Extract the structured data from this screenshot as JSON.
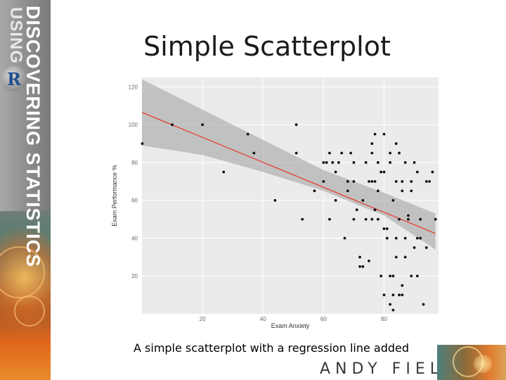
{
  "slide": {
    "title": "Simple Scatterplot",
    "caption": "A simple scatterplot with a regression line added",
    "author": "ANDY FIELD",
    "sidebar": {
      "line1": "DISCOVERING STATISTICS",
      "line2": "USING",
      "logo_letter": "R"
    }
  },
  "chart_data": {
    "type": "scatter",
    "xlabel": "Exam Anxiety",
    "ylabel": "Exam Performance %",
    "xlim": [
      0,
      98
    ],
    "ylim": [
      0,
      125
    ],
    "xticks": [
      20,
      40,
      60,
      80
    ],
    "yticks": [
      20,
      40,
      60,
      80,
      100,
      120
    ],
    "grid": true,
    "background": "#ebebeb",
    "points": [
      [
        0.1,
        90
      ],
      [
        10,
        100
      ],
      [
        20,
        100
      ],
      [
        27,
        75
      ],
      [
        35,
        95
      ],
      [
        37,
        85
      ],
      [
        44,
        60
      ],
      [
        51,
        100
      ],
      [
        51,
        85
      ],
      [
        53,
        50
      ],
      [
        57,
        65
      ],
      [
        60,
        80
      ],
      [
        60,
        70
      ],
      [
        61,
        80
      ],
      [
        62,
        85
      ],
      [
        62,
        50
      ],
      [
        63,
        80
      ],
      [
        64,
        60
      ],
      [
        64,
        75
      ],
      [
        65,
        80
      ],
      [
        66,
        85
      ],
      [
        67,
        40
      ],
      [
        68,
        70
      ],
      [
        68,
        65
      ],
      [
        69,
        85
      ],
      [
        70,
        80
      ],
      [
        70,
        70
      ],
      [
        70,
        50
      ],
      [
        71,
        55
      ],
      [
        72,
        25
      ],
      [
        72,
        30
      ],
      [
        73,
        25
      ],
      [
        73,
        60
      ],
      [
        74,
        80
      ],
      [
        74,
        50
      ],
      [
        75,
        28
      ],
      [
        75,
        70
      ],
      [
        76,
        90
      ],
      [
        76,
        85
      ],
      [
        76,
        70
      ],
      [
        76,
        50
      ],
      [
        77,
        95
      ],
      [
        77,
        55
      ],
      [
        77,
        70
      ],
      [
        78,
        80
      ],
      [
        78,
        50
      ],
      [
        78,
        65
      ],
      [
        79,
        20
      ],
      [
        79,
        75
      ],
      [
        80,
        95
      ],
      [
        80,
        75
      ],
      [
        80,
        45
      ],
      [
        80,
        10
      ],
      [
        81,
        45
      ],
      [
        81,
        40
      ],
      [
        82,
        80
      ],
      [
        82,
        85
      ],
      [
        82,
        20
      ],
      [
        82,
        5
      ],
      [
        83,
        60
      ],
      [
        83,
        20
      ],
      [
        83,
        10
      ],
      [
        83,
        2
      ],
      [
        84,
        90
      ],
      [
        84,
        70
      ],
      [
        84,
        40
      ],
      [
        84,
        30
      ],
      [
        85,
        85
      ],
      [
        85,
        50
      ],
      [
        85,
        10
      ],
      [
        86,
        70
      ],
      [
        86,
        65
      ],
      [
        86,
        15
      ],
      [
        86,
        10
      ],
      [
        87,
        80
      ],
      [
        87,
        30
      ],
      [
        87,
        40
      ],
      [
        88,
        50
      ],
      [
        88,
        52
      ],
      [
        89,
        70
      ],
      [
        89,
        65
      ],
      [
        89,
        20
      ],
      [
        90,
        80
      ],
      [
        90,
        35
      ],
      [
        91,
        75
      ],
      [
        91,
        20
      ],
      [
        91,
        40
      ],
      [
        92,
        50
      ],
      [
        92,
        40
      ],
      [
        93,
        5
      ],
      [
        94,
        70
      ],
      [
        94,
        35
      ],
      [
        95,
        70
      ],
      [
        96,
        75
      ],
      [
        97,
        50
      ]
    ],
    "regression": {
      "x": [
        0,
        97
      ],
      "y": [
        106.5,
        42.5
      ],
      "line_color": "#e8352a"
    },
    "confidence_band": {
      "x": [
        0,
        20,
        40,
        60,
        80,
        97
      ],
      "upper": [
        124,
        108,
        92,
        76,
        64,
        53
      ],
      "lower": [
        89,
        84,
        75,
        65,
        52,
        34
      ]
    }
  }
}
